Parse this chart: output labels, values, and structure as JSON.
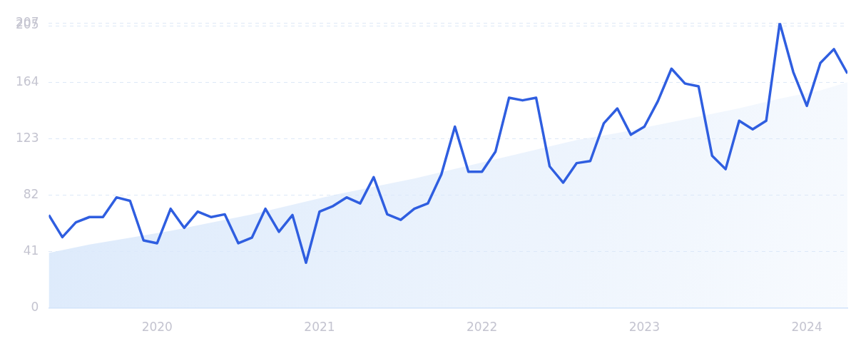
{
  "chart_data": {
    "type": "line",
    "xlim": [
      "2019-05",
      "2024-04"
    ],
    "xticks": [
      "2020",
      "2021",
      "2022",
      "2023",
      "2024"
    ],
    "ylim": [
      0,
      207
    ],
    "yticks": [
      0,
      41,
      82,
      123,
      164,
      205,
      207
    ],
    "grid": "y",
    "marker": "none",
    "line_style": "solid",
    "legend": false,
    "series": [
      {
        "type": "area",
        "color": "#dbe9fb",
        "x": [
          "2019-05",
          "2019-08",
          "2019-11",
          "2020-02",
          "2020-05",
          "2020-08",
          "2020-11",
          "2021-02",
          "2021-05",
          "2021-08",
          "2021-11",
          "2022-02",
          "2022-05",
          "2022-08",
          "2022-11",
          "2023-02",
          "2023-05",
          "2023-08",
          "2023-11",
          "2024-02",
          "2024-04"
        ],
        "values": [
          40,
          46,
          51,
          56,
          62,
          68,
          75,
          82,
          88,
          94,
          101,
          108,
          115,
          122,
          127,
          133,
          139,
          145,
          152,
          158,
          164
        ]
      },
      {
        "color": "#2f5ee0",
        "x": [
          "2019-05",
          "2019-06",
          "2019-07",
          "2019-08",
          "2019-09",
          "2019-10",
          "2019-11",
          "2019-12",
          "2020-01",
          "2020-02",
          "2020-03",
          "2020-04",
          "2020-05",
          "2020-06",
          "2020-07",
          "2020-08",
          "2020-09",
          "2020-10",
          "2020-11",
          "2020-12",
          "2021-01",
          "2021-02",
          "2021-03",
          "2021-04",
          "2021-05",
          "2021-06",
          "2021-07",
          "2021-08",
          "2021-09",
          "2021-10",
          "2021-11",
          "2021-12",
          "2022-01",
          "2022-02",
          "2022-03",
          "2022-04",
          "2022-05",
          "2022-06",
          "2022-07",
          "2022-08",
          "2022-09",
          "2022-10",
          "2022-11",
          "2022-12",
          "2023-01",
          "2023-02",
          "2023-03",
          "2023-04",
          "2023-05",
          "2023-06",
          "2023-07",
          "2023-08",
          "2023-09",
          "2023-10",
          "2023-11",
          "2023-12",
          "2024-01",
          "2024-02",
          "2024-03",
          "2024-04"
        ],
        "values": [
          67.5,
          51.4,
          62.2,
          66,
          66,
          80.3,
          77.8,
          49,
          47,
          72,
          58.2,
          70,
          66,
          68,
          47,
          51,
          72,
          55.3,
          67.5,
          32.8,
          70,
          74,
          80.3,
          75.9,
          95,
          68,
          64,
          72,
          75.9,
          97,
          131.7,
          98.9,
          98.9,
          113.6,
          152.7,
          150.8,
          152.7,
          102.8,
          91,
          105.2,
          106.7,
          134.1,
          144.9,
          125.8,
          131.7,
          150.3,
          173.8,
          163,
          161,
          110.6,
          100.8,
          136,
          129.7,
          136,
          207,
          171.3,
          146.8,
          178,
          188,
          170.3
        ]
      }
    ]
  }
}
